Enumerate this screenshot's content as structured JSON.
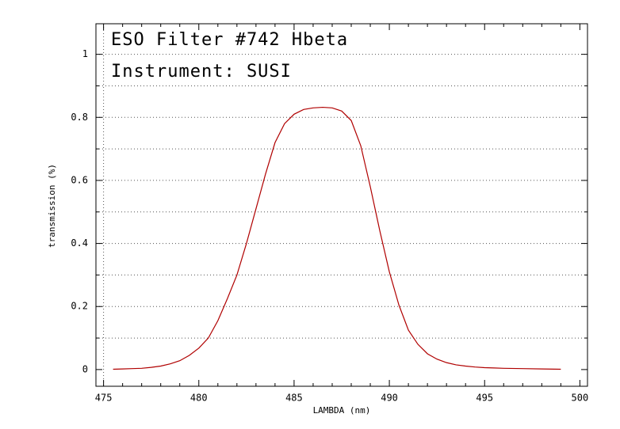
{
  "chart_data": {
    "type": "line",
    "title": "ESO Filter #742 Hbeta",
    "subtitle": "Instrument: SUSI",
    "x_label": "LAMBDA (nm)",
    "y_label": "transmission (%)",
    "xlim": [
      474.6,
      500.4
    ],
    "ylim": [
      -0.053,
      1.097
    ],
    "xticks": [
      475,
      480,
      485,
      490,
      495,
      500
    ],
    "minor_xticks": [
      476,
      477,
      478,
      479,
      481,
      482,
      483,
      484,
      486,
      487,
      488,
      489,
      491,
      492,
      493,
      494,
      496,
      497,
      498,
      499
    ],
    "yticks": [
      0,
      0.2,
      0.4,
      0.6,
      0.8,
      1
    ],
    "minor_yticks": [
      0.1,
      0.3,
      0.5,
      0.7,
      0.9
    ],
    "grid": true,
    "series": [
      {
        "color": "#b00000",
        "x": [
          475.5,
          476,
          476.5,
          477,
          477.5,
          478,
          478.5,
          479,
          479.5,
          480,
          480.5,
          481,
          481.5,
          482,
          482.5,
          483,
          483.5,
          484,
          484.5,
          485,
          485.5,
          486,
          486.5,
          487,
          487.5,
          488,
          488.5,
          489,
          489.5,
          490,
          490.5,
          491,
          491.5,
          492,
          492.5,
          493,
          493.5,
          494,
          494.5,
          495,
          495.5,
          496,
          497,
          498,
          499
        ],
        "values": [
          0.001,
          0.002,
          0.003,
          0.004,
          0.007,
          0.011,
          0.018,
          0.028,
          0.045,
          0.068,
          0.1,
          0.155,
          0.225,
          0.3,
          0.4,
          0.51,
          0.62,
          0.72,
          0.78,
          0.81,
          0.825,
          0.83,
          0.832,
          0.83,
          0.82,
          0.79,
          0.71,
          0.58,
          0.44,
          0.31,
          0.205,
          0.125,
          0.08,
          0.05,
          0.033,
          0.022,
          0.015,
          0.011,
          0.008,
          0.006,
          0.005,
          0.004,
          0.003,
          0.002,
          0.001
        ]
      }
    ]
  }
}
